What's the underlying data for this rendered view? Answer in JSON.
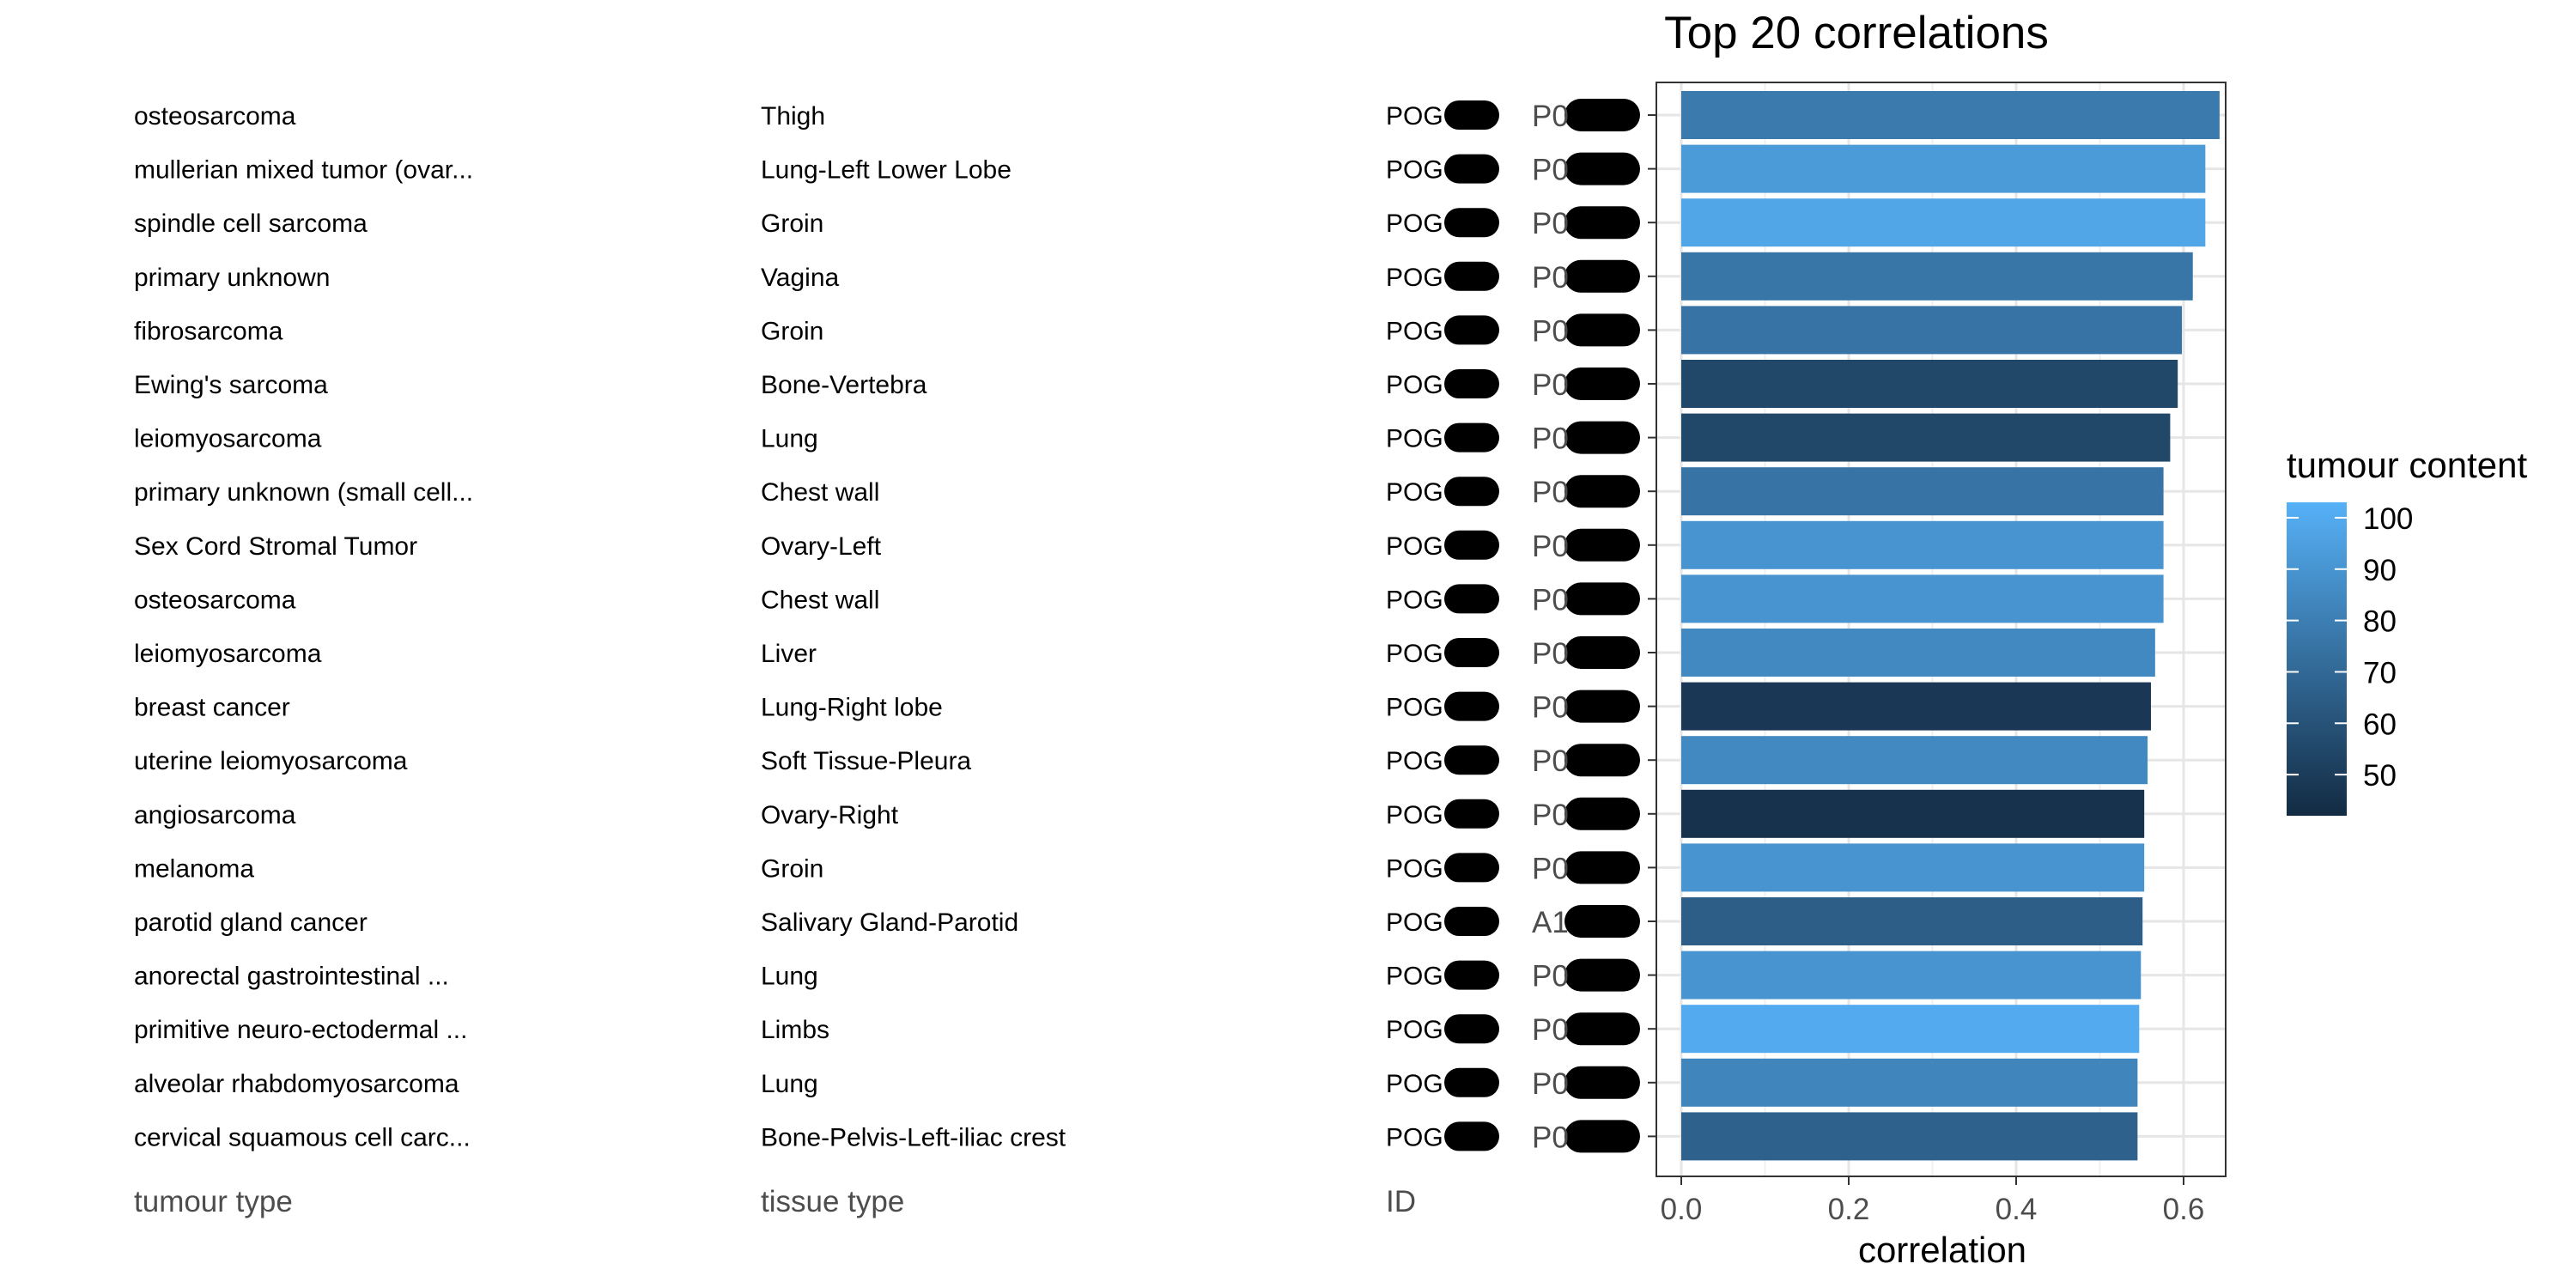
{
  "chart_data": {
    "type": "bar",
    "orientation": "horizontal",
    "title": "Top 20 correlations",
    "xlabel": "correlation",
    "x_ticks": [
      "0.0",
      "0.2",
      "0.4",
      "0.6"
    ],
    "xlim": [
      0,
      0.66
    ],
    "grid": true,
    "legend": {
      "title": "tumour content",
      "placement": "right",
      "type": "colorbar",
      "range": [
        42,
        103
      ],
      "ticks": [
        "100",
        "90",
        "80",
        "70",
        "60",
        "50"
      ],
      "colors": {
        "low": "#132b43",
        "high": "#56b1f7"
      }
    },
    "table_headers": {
      "tumour_type": "tumour type",
      "tissue_type": "tissue type",
      "id": "ID"
    },
    "rows": [
      {
        "tumour_type": "osteosarcoma",
        "tissue_type": "Thigh",
        "id": "POG",
        "label": "P0",
        "value": 0.643,
        "tumour_content": 78
      },
      {
        "tumour_type": "mullerian mixed tumor (ovar...",
        "tissue_type": "Lung-Left Lower Lobe",
        "id": "POG",
        "label": "P0",
        "value": 0.626,
        "tumour_content": 93
      },
      {
        "tumour_type": "spindle cell sarcoma",
        "tissue_type": "Groin",
        "id": "POG",
        "label": "P0",
        "value": 0.626,
        "tumour_content": 98
      },
      {
        "tumour_type": "primary unknown",
        "tissue_type": "Vagina",
        "id": "POG",
        "label": "P0",
        "value": 0.611,
        "tumour_content": 76
      },
      {
        "tumour_type": "fibrosarcoma",
        "tissue_type": "Groin",
        "id": "POG",
        "label": "P0",
        "value": 0.598,
        "tumour_content": 75
      },
      {
        "tumour_type": "Ewing's sarcoma",
        "tissue_type": "Bone-Vertebra",
        "id": "POG",
        "label": "P0",
        "value": 0.593,
        "tumour_content": 55
      },
      {
        "tumour_type": "leiomyosarcoma",
        "tissue_type": "Lung",
        "id": "POG",
        "label": "P0",
        "value": 0.584,
        "tumour_content": 55
      },
      {
        "tumour_type": "primary unknown (small cell...",
        "tissue_type": "Chest wall",
        "id": "POG",
        "label": "P0",
        "value": 0.576,
        "tumour_content": 75
      },
      {
        "tumour_type": "Sex Cord Stromal Tumor",
        "tissue_type": "Ovary-Left",
        "id": "POG",
        "label": "P0",
        "value": 0.576,
        "tumour_content": 90
      },
      {
        "tumour_type": "osteosarcoma",
        "tissue_type": "Chest wall",
        "id": "POG",
        "label": "P0",
        "value": 0.576,
        "tumour_content": 90
      },
      {
        "tumour_type": "leiomyosarcoma",
        "tissue_type": "Liver",
        "id": "POG",
        "label": "P0",
        "value": 0.566,
        "tumour_content": 85
      },
      {
        "tumour_type": "breast cancer",
        "tissue_type": "Lung-Right lobe",
        "id": "POG",
        "label": "P0",
        "value": 0.561,
        "tumour_content": 48
      },
      {
        "tumour_type": "uterine leiomyosarcoma",
        "tissue_type": "Soft Tissue-Pleura",
        "id": "POG",
        "label": "P0",
        "value": 0.557,
        "tumour_content": 85
      },
      {
        "tumour_type": "angiosarcoma",
        "tissue_type": "Ovary-Right",
        "id": "POG",
        "label": "P0",
        "value": 0.553,
        "tumour_content": 45
      },
      {
        "tumour_type": "melanoma",
        "tissue_type": "Groin",
        "id": "POG",
        "label": "P0",
        "value": 0.553,
        "tumour_content": 90
      },
      {
        "tumour_type": "parotid gland cancer",
        "tissue_type": "Salivary Gland-Parotid",
        "id": "POG",
        "label": "A1",
        "value": 0.551,
        "tumour_content": 65
      },
      {
        "tumour_type": "anorectal gastrointestinal ...",
        "tissue_type": "Lung",
        "id": "POG",
        "label": "P0",
        "value": 0.549,
        "tumour_content": 90
      },
      {
        "tumour_type": "primitive neuro-ectodermal ...",
        "tissue_type": "Limbs",
        "id": "POG",
        "label": "P0",
        "value": 0.547,
        "tumour_content": 100
      },
      {
        "tumour_type": "alveolar rhabdomyosarcoma",
        "tissue_type": "Lung",
        "id": "POG",
        "label": "P0",
        "value": 0.545,
        "tumour_content": 83
      },
      {
        "tumour_type": "cervical squamous cell carc...",
        "tissue_type": "Bone-Pelvis-Left-iliac crest",
        "id": "POG",
        "label": "P0",
        "value": 0.545,
        "tumour_content": 67
      }
    ]
  }
}
